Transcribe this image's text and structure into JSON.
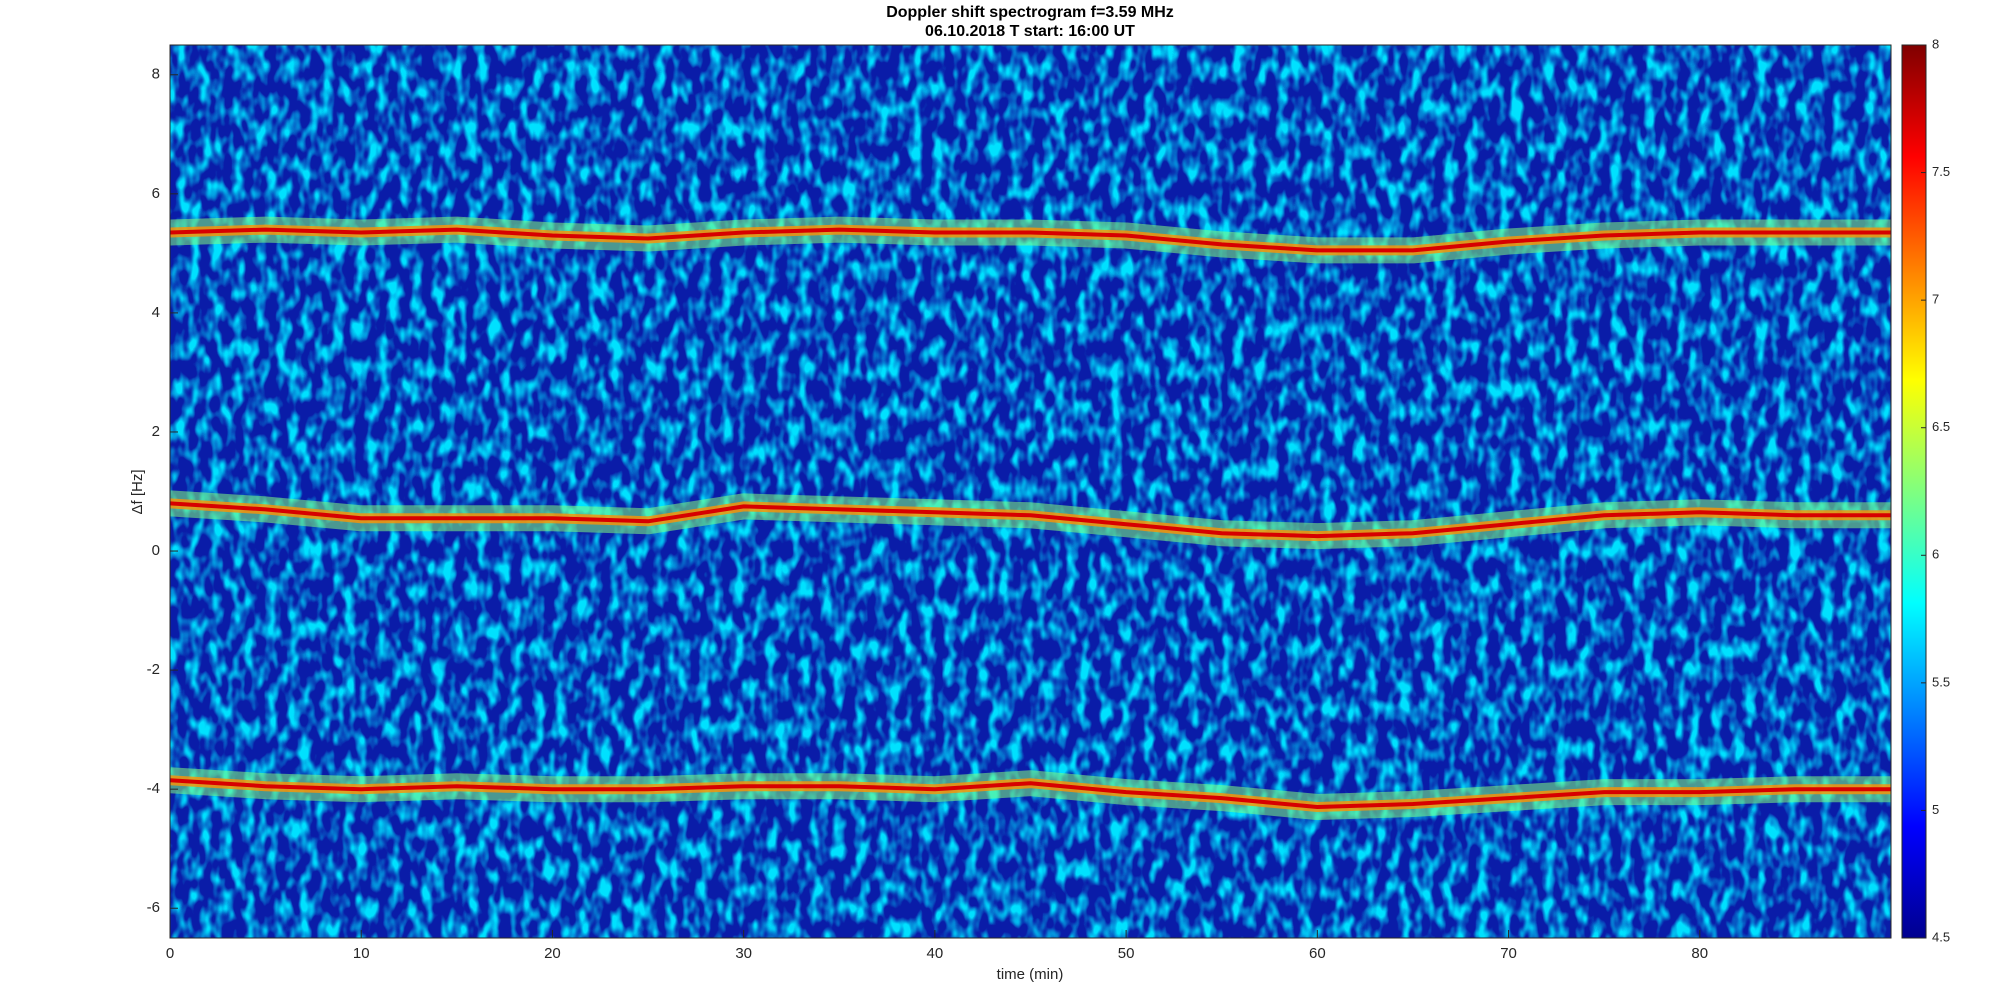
{
  "chart_data": {
    "type": "spectrogram",
    "title": "Doppler shift spectrogram f=3.59 MHz",
    "subtitle": "06.10.2018    T start: 16:00 UT",
    "x_label": "time (min)",
    "y_label": "Δf [Hz]",
    "xlim": [
      0,
      90
    ],
    "xticks": [
      0,
      10,
      20,
      30,
      40,
      50,
      60,
      70,
      80
    ],
    "ylim": [
      -6.5,
      8.5
    ],
    "yticks": [
      -6,
      -4,
      -2,
      0,
      2,
      4,
      6,
      8
    ],
    "clim": [
      4.5,
      8
    ],
    "cticks": [
      4.5,
      5,
      5.5,
      6,
      6.5,
      7,
      7.5,
      8
    ],
    "colormap": "jet",
    "x": [
      0,
      5,
      10,
      15,
      20,
      25,
      30,
      35,
      40,
      45,
      50,
      55,
      60,
      65,
      70,
      75,
      80,
      85,
      90
    ],
    "series": [
      {
        "level": 7.7,
        "values": [
          5.35,
          5.4,
          5.35,
          5.4,
          5.3,
          5.25,
          5.35,
          5.4,
          5.35,
          5.35,
          5.3,
          5.15,
          5.05,
          5.05,
          5.2,
          5.3,
          5.35,
          5.35,
          5.35
        ]
      },
      {
        "level": 7.7,
        "values": [
          0.8,
          0.7,
          0.55,
          0.55,
          0.55,
          0.5,
          0.75,
          0.7,
          0.65,
          0.6,
          0.45,
          0.3,
          0.25,
          0.3,
          0.45,
          0.6,
          0.65,
          0.6,
          0.6
        ]
      },
      {
        "level": 7.7,
        "values": [
          -3.85,
          -3.95,
          -4.0,
          -3.95,
          -4.0,
          -4.0,
          -3.95,
          -3.95,
          -4.0,
          -3.9,
          -4.05,
          -4.15,
          -4.3,
          -4.25,
          -4.15,
          -4.05,
          -4.05,
          -4.0,
          -4.0
        ]
      }
    ]
  }
}
